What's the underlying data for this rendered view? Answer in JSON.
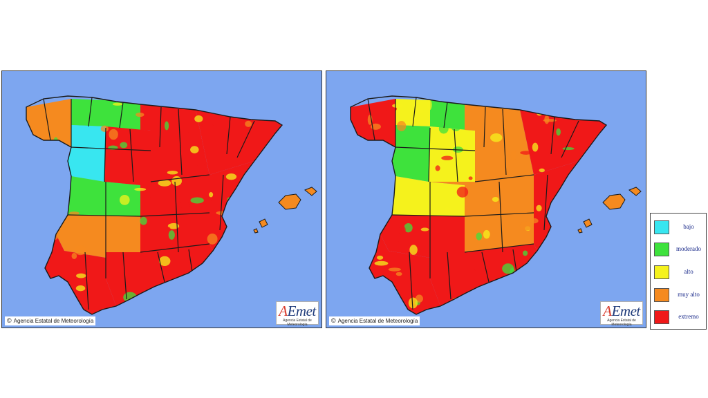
{
  "maps": [
    {
      "id": "left",
      "credit": "Agencia Estatal de Meteorología",
      "credit_symbol": "©",
      "logo_text": "AEmet",
      "logo_subtitle": "Agencia Estatal de Meteorología",
      "region_levels": {
        "galicia": "muy alto",
        "asturias": "moderado",
        "cantabria": "moderado",
        "duero_west": "bajo",
        "duero_east": "extremo",
        "ebro": "extremo",
        "catalonia": "extremo",
        "tajo_west": "moderado",
        "meseta_sur": "extremo",
        "levante": "extremo",
        "extremadura": "muy alto",
        "guadalquivir": "extremo",
        "huelva": "extremo",
        "baleares": "muy alto"
      }
    },
    {
      "id": "right",
      "credit": "Agencia Estatal de Meteorología",
      "credit_symbol": "©",
      "logo_text": "AEmet",
      "logo_subtitle": "Agencia Estatal de Meteorología",
      "region_levels": {
        "galicia": "extremo",
        "asturias": "alto",
        "cantabria": "moderado",
        "duero_west": "moderado",
        "duero_east": "alto",
        "ebro": "muy alto",
        "catalonia": "extremo",
        "tajo_west": "alto",
        "meseta_sur": "muy alto",
        "levante": "extremo",
        "extremadura": "extremo",
        "guadalquivir": "extremo",
        "huelva": "extremo",
        "baleares": "muy alto"
      }
    }
  ],
  "legend": {
    "items": [
      {
        "label": "bajo",
        "color": "#38e6f0"
      },
      {
        "label": "moderado",
        "color": "#3ee23c"
      },
      {
        "label": "alto",
        "color": "#f5f21c"
      },
      {
        "label": "muy alto",
        "color": "#f58a1f"
      },
      {
        "label": "extremo",
        "color": "#f01818"
      }
    ]
  },
  "colors": {
    "sea": "#7da6f0",
    "border": "#1a1a1a"
  }
}
